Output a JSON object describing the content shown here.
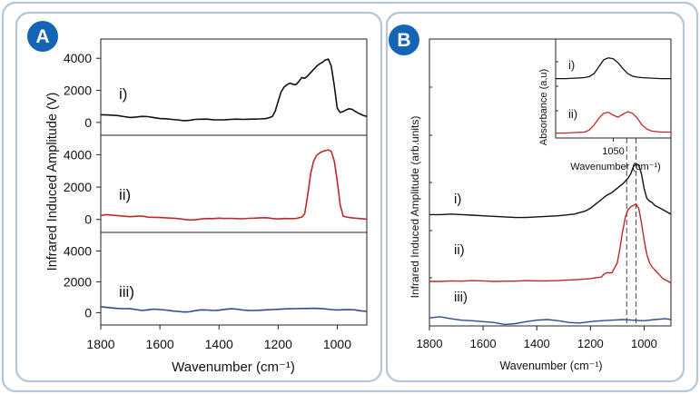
{
  "panels": {
    "a": {
      "badge": "A"
    },
    "b": {
      "badge": "B"
    }
  },
  "colors": {
    "frame": "#b4c6d8",
    "badge": "#1565b6",
    "black": "#111111",
    "red": "#c0282a",
    "blue": "#2f4a8e"
  },
  "chart_data": [
    {
      "id": "panelA",
      "type": "line",
      "layout": "stacked-3",
      "xlabel": "Wavenumber (cm⁻¹)",
      "ylabel": "Infrared Induced Amplitude (V)",
      "xlim": [
        1800,
        900
      ],
      "x_ticks": [
        1800,
        1600,
        1400,
        1200,
        1000
      ],
      "x_tick_labels": [
        "1800",
        "1600",
        "1400",
        "1200",
        "1000"
      ],
      "ylim": [
        -800,
        5200
      ],
      "y_ticks": [
        0,
        2000,
        4000
      ],
      "y_tick_labels": [
        "0",
        "2000",
        "4000"
      ],
      "series": [
        {
          "name": "i)",
          "color": "black",
          "x": [
            1800,
            1780,
            1760,
            1740,
            1720,
            1700,
            1680,
            1660,
            1640,
            1620,
            1600,
            1580,
            1560,
            1540,
            1520,
            1500,
            1480,
            1460,
            1440,
            1420,
            1400,
            1380,
            1360,
            1340,
            1320,
            1300,
            1280,
            1260,
            1240,
            1220,
            1210,
            1200,
            1190,
            1180,
            1170,
            1160,
            1150,
            1140,
            1130,
            1120,
            1110,
            1100,
            1090,
            1080,
            1070,
            1060,
            1050,
            1040,
            1030,
            1020,
            1010,
            1000,
            990,
            980,
            970,
            960,
            950,
            940,
            930,
            920,
            910,
            900
          ],
          "y": [
            480,
            470,
            450,
            420,
            360,
            310,
            340,
            380,
            360,
            300,
            240,
            230,
            190,
            160,
            110,
            130,
            190,
            200,
            210,
            170,
            160,
            170,
            190,
            210,
            190,
            200,
            210,
            220,
            240,
            360,
            700,
            1300,
            1900,
            2200,
            2350,
            2450,
            2380,
            2350,
            2550,
            2800,
            2750,
            2900,
            3100,
            3300,
            3500,
            3650,
            3750,
            3900,
            3950,
            3500,
            2300,
            900,
            620,
            680,
            780,
            850,
            820,
            700,
            600,
            500,
            420,
            380
          ]
        },
        {
          "name": "ii)",
          "color": "red",
          "x": [
            1800,
            1780,
            1760,
            1740,
            1720,
            1700,
            1680,
            1660,
            1640,
            1620,
            1600,
            1580,
            1560,
            1540,
            1520,
            1500,
            1480,
            1460,
            1440,
            1420,
            1400,
            1380,
            1360,
            1340,
            1320,
            1300,
            1280,
            1260,
            1240,
            1220,
            1200,
            1180,
            1160,
            1140,
            1130,
            1120,
            1110,
            1100,
            1090,
            1080,
            1070,
            1060,
            1050,
            1040,
            1030,
            1020,
            1010,
            1000,
            990,
            980,
            960,
            940,
            920,
            900
          ],
          "y": [
            250,
            300,
            260,
            230,
            200,
            170,
            200,
            210,
            140,
            130,
            120,
            100,
            80,
            60,
            10,
            -30,
            -20,
            30,
            60,
            50,
            80,
            60,
            70,
            50,
            40,
            70,
            80,
            100,
            110,
            60,
            30,
            60,
            50,
            60,
            100,
            150,
            350,
            1500,
            2800,
            3600,
            3950,
            4100,
            4200,
            4250,
            4300,
            4200,
            3600,
            2400,
            900,
            200,
            120,
            80,
            50,
            20
          ]
        },
        {
          "name": "iii)",
          "color": "blue",
          "x": [
            1800,
            1780,
            1760,
            1740,
            1720,
            1700,
            1680,
            1660,
            1640,
            1620,
            1600,
            1580,
            1560,
            1540,
            1520,
            1500,
            1480,
            1460,
            1440,
            1420,
            1400,
            1380,
            1360,
            1340,
            1320,
            1300,
            1280,
            1260,
            1240,
            1220,
            1200,
            1180,
            1160,
            1140,
            1120,
            1100,
            1080,
            1060,
            1040,
            1020,
            1000,
            980,
            960,
            940,
            920,
            900
          ],
          "y": [
            380,
            340,
            300,
            270,
            260,
            250,
            200,
            140,
            180,
            230,
            200,
            170,
            120,
            80,
            40,
            60,
            130,
            180,
            170,
            140,
            160,
            210,
            250,
            230,
            170,
            150,
            140,
            160,
            180,
            200,
            220,
            240,
            250,
            260,
            270,
            270,
            280,
            270,
            240,
            200,
            170,
            190,
            200,
            180,
            120,
            80
          ]
        }
      ],
      "annotations": [
        "i)",
        "ii)",
        "iii)"
      ]
    },
    {
      "id": "panelB",
      "type": "line",
      "layout": "offset-stacked",
      "xlabel": "Wavenumber (cm⁻¹)",
      "ylabel": "Infrared Induced Amplitude (arb.units)",
      "xlim": [
        1800,
        900
      ],
      "x_ticks": [
        1800,
        1600,
        1400,
        1200,
        1000
      ],
      "x_tick_labels": [
        "1800",
        "1600",
        "1400",
        "1200",
        "1000"
      ],
      "ylim": [
        0,
        10
      ],
      "reference_lines_x": [
        1065,
        1030
      ],
      "series": [
        {
          "name": "i)",
          "color": "black",
          "x": [
            1800,
            1760,
            1720,
            1680,
            1640,
            1600,
            1560,
            1520,
            1480,
            1440,
            1400,
            1360,
            1320,
            1280,
            1260,
            1240,
            1220,
            1200,
            1180,
            1160,
            1140,
            1120,
            1100,
            1080,
            1060,
            1050,
            1040,
            1030,
            1020,
            1010,
            1000,
            990,
            980,
            970,
            960,
            950,
            940,
            930,
            920,
            910,
            900
          ],
          "y": [
            3.88,
            3.88,
            3.9,
            3.88,
            3.86,
            3.84,
            3.82,
            3.8,
            3.78,
            3.78,
            3.8,
            3.82,
            3.84,
            3.88,
            3.9,
            3.95,
            4.0,
            4.1,
            4.25,
            4.4,
            4.55,
            4.65,
            4.8,
            4.95,
            5.15,
            5.3,
            5.55,
            5.65,
            5.6,
            5.3,
            4.8,
            4.45,
            4.35,
            4.3,
            4.2,
            4.15,
            4.1,
            4.05,
            4.0,
            3.95,
            3.9
          ]
        },
        {
          "name": "ii)",
          "color": "red",
          "x": [
            1800,
            1760,
            1720,
            1680,
            1640,
            1600,
            1560,
            1520,
            1480,
            1440,
            1400,
            1360,
            1320,
            1280,
            1240,
            1200,
            1180,
            1160,
            1150,
            1140,
            1120,
            1100,
            1090,
            1080,
            1070,
            1060,
            1050,
            1040,
            1030,
            1020,
            1010,
            1000,
            990,
            980,
            970,
            960,
            950,
            940,
            930,
            920,
            910,
            900
          ],
          "y": [
            1.55,
            1.55,
            1.57,
            1.56,
            1.58,
            1.57,
            1.55,
            1.56,
            1.56,
            1.58,
            1.57,
            1.57,
            1.58,
            1.6,
            1.62,
            1.65,
            1.68,
            1.7,
            1.8,
            1.85,
            1.85,
            2.2,
            2.7,
            3.3,
            3.8,
            4.05,
            4.15,
            4.2,
            4.25,
            4.1,
            3.6,
            3.0,
            2.5,
            2.2,
            2.05,
            1.95,
            1.85,
            1.75,
            1.65,
            1.6,
            1.55,
            1.5
          ]
        },
        {
          "name": "iii)",
          "color": "blue",
          "x": [
            1800,
            1760,
            1720,
            1680,
            1640,
            1600,
            1560,
            1520,
            1480,
            1440,
            1400,
            1360,
            1320,
            1280,
            1240,
            1200,
            1160,
            1120,
            1080,
            1040,
            1000,
            960,
            920,
            900
          ],
          "y": [
            0.28,
            0.32,
            0.25,
            0.2,
            0.18,
            0.15,
            0.12,
            0.05,
            0.08,
            0.15,
            0.2,
            0.22,
            0.18,
            0.12,
            0.1,
            0.15,
            0.18,
            0.2,
            0.22,
            0.2,
            0.18,
            0.22,
            0.25,
            0.22
          ]
        }
      ],
      "annotations": [
        "i)",
        "ii)",
        "iii)"
      ]
    },
    {
      "id": "inset",
      "type": "line",
      "layout": "offset-stacked",
      "xlabel": "Wavenumber (cm⁻¹)",
      "ylabel": "Absorbance (a.u)",
      "xlim": [
        1110,
        990
      ],
      "x_ticks": [
        1050
      ],
      "x_tick_labels": [
        "1050"
      ],
      "ylim": [
        0,
        10
      ],
      "series": [
        {
          "name": "i)",
          "color": "black",
          "x": [
            1110,
            1100,
            1090,
            1080,
            1075,
            1070,
            1065,
            1060,
            1055,
            1050,
            1045,
            1040,
            1035,
            1030,
            1025,
            1020,
            1010,
            1000,
            990
          ],
          "y": [
            6.0,
            6.0,
            6.05,
            6.1,
            6.2,
            6.5,
            7.2,
            7.9,
            8.1,
            8.0,
            7.6,
            7.0,
            6.5,
            6.25,
            6.15,
            6.1,
            6.05,
            6.0,
            6.0
          ]
        },
        {
          "name": "ii)",
          "color": "red",
          "x": [
            1110,
            1100,
            1090,
            1080,
            1075,
            1070,
            1065,
            1060,
            1055,
            1050,
            1045,
            1040,
            1035,
            1030,
            1025,
            1020,
            1015,
            1010,
            1000,
            990
          ],
          "y": [
            0.5,
            0.5,
            0.55,
            0.6,
            0.8,
            1.3,
            2.0,
            2.5,
            2.6,
            2.3,
            2.1,
            2.4,
            2.65,
            2.5,
            2.0,
            1.3,
            0.9,
            0.7,
            0.6,
            0.6
          ]
        }
      ],
      "annotations": [
        "i)",
        "ii)"
      ]
    }
  ]
}
